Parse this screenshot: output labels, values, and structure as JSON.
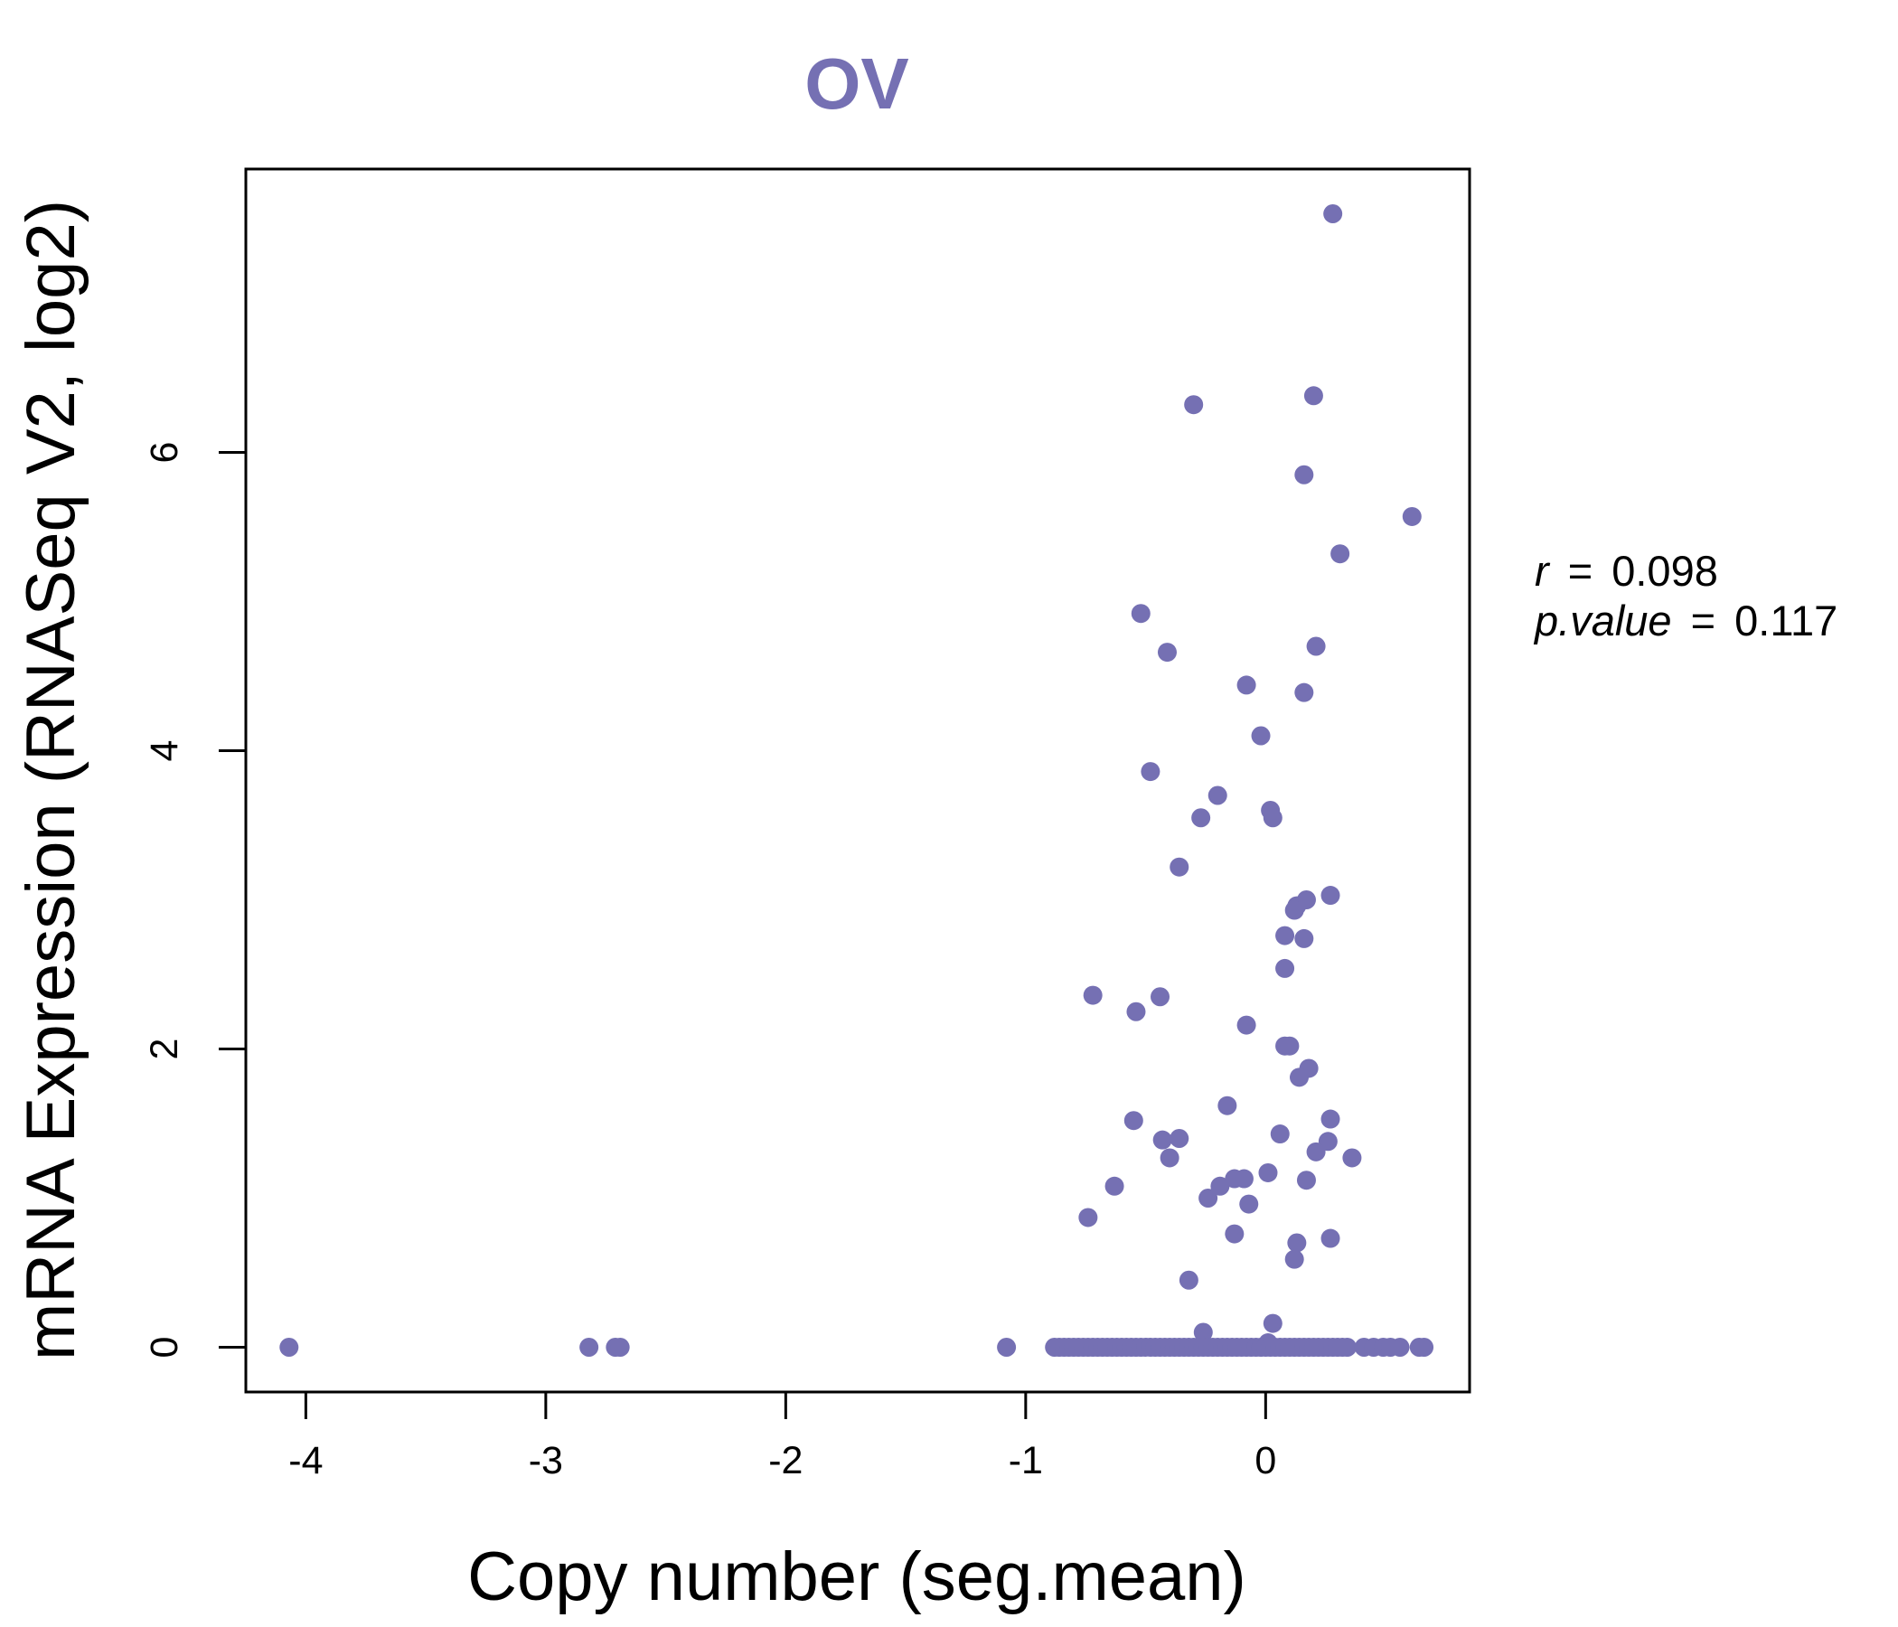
{
  "chart_data": {
    "type": "scatter",
    "title": "OV",
    "xlabel": "Copy number (seg.mean)",
    "ylabel": "mRNA Expression (RNASeq V2, log2)",
    "xlim": [
      -4.25,
      0.85
    ],
    "ylim": [
      -0.3,
      7.9
    ],
    "xticks": [
      -4,
      -3,
      -2,
      -1,
      0
    ],
    "yticks": [
      0,
      2,
      4,
      6
    ],
    "point_color": "#7570b3",
    "title_color": "#7570b3",
    "annotation": {
      "r_label": "r",
      "r_value": "0.098",
      "p_label": "p.value",
      "p_value": "0.117"
    },
    "points": [
      [
        0.28,
        7.6
      ],
      [
        -0.3,
        6.32
      ],
      [
        0.2,
        6.38
      ],
      [
        0.16,
        5.85
      ],
      [
        0.61,
        5.57
      ],
      [
        0.31,
        5.32
      ],
      [
        -0.52,
        4.92
      ],
      [
        -0.41,
        4.66
      ],
      [
        0.21,
        4.7
      ],
      [
        -0.08,
        4.44
      ],
      [
        0.16,
        4.39
      ],
      [
        -0.02,
        4.1
      ],
      [
        -0.48,
        3.86
      ],
      [
        -0.2,
        3.7
      ],
      [
        0.02,
        3.6
      ],
      [
        -0.27,
        3.55
      ],
      [
        0.03,
        3.55
      ],
      [
        -0.36,
        3.22
      ],
      [
        0.27,
        3.03
      ],
      [
        0.17,
        3.0
      ],
      [
        0.13,
        2.96
      ],
      [
        0.12,
        2.93
      ],
      [
        0.08,
        2.76
      ],
      [
        0.16,
        2.74
      ],
      [
        0.08,
        2.54
      ],
      [
        -0.72,
        2.36
      ],
      [
        -0.44,
        2.35
      ],
      [
        -0.54,
        2.25
      ],
      [
        -0.08,
        2.16
      ],
      [
        0.08,
        2.02
      ],
      [
        0.1,
        2.02
      ],
      [
        0.18,
        1.87
      ],
      [
        0.14,
        1.81
      ],
      [
        -0.16,
        1.62
      ],
      [
        -0.55,
        1.52
      ],
      [
        0.27,
        1.53
      ],
      [
        0.06,
        1.43
      ],
      [
        -0.43,
        1.39
      ],
      [
        -0.36,
        1.4
      ],
      [
        0.26,
        1.38
      ],
      [
        0.21,
        1.31
      ],
      [
        0.36,
        1.27
      ],
      [
        -0.4,
        1.27
      ],
      [
        0.01,
        1.17
      ],
      [
        -0.13,
        1.13
      ],
      [
        -0.09,
        1.13
      ],
      [
        0.17,
        1.12
      ],
      [
        -0.19,
        1.08
      ],
      [
        -0.63,
        1.08
      ],
      [
        -0.24,
        1.0
      ],
      [
        -0.07,
        0.96
      ],
      [
        -0.74,
        0.87
      ],
      [
        -0.13,
        0.76
      ],
      [
        0.27,
        0.73
      ],
      [
        0.13,
        0.7
      ],
      [
        0.12,
        0.59
      ],
      [
        -0.32,
        0.45
      ],
      [
        0.03,
        0.16
      ],
      [
        -0.26,
        0.1
      ],
      [
        0.01,
        0.03
      ],
      [
        -4.07,
        0.0
      ],
      [
        -2.82,
        0.0
      ],
      [
        -2.71,
        0.0
      ],
      [
        -2.69,
        0.0
      ],
      [
        -1.08,
        0.0
      ],
      [
        -0.88,
        0.0
      ],
      [
        -0.86,
        0.0
      ],
      [
        -0.84,
        0.0
      ],
      [
        -0.82,
        0.0
      ],
      [
        -0.8,
        0.0
      ],
      [
        -0.78,
        0.0
      ],
      [
        -0.76,
        0.0
      ],
      [
        -0.74,
        0.0
      ],
      [
        -0.72,
        0.0
      ],
      [
        -0.7,
        0.0
      ],
      [
        -0.68,
        0.0
      ],
      [
        -0.66,
        0.0
      ],
      [
        -0.64,
        0.0
      ],
      [
        -0.62,
        0.0
      ],
      [
        -0.6,
        0.0
      ],
      [
        -0.58,
        0.0
      ],
      [
        -0.56,
        0.0
      ],
      [
        -0.54,
        0.0
      ],
      [
        -0.52,
        0.0
      ],
      [
        -0.5,
        0.0
      ],
      [
        -0.48,
        0.0
      ],
      [
        -0.46,
        0.0
      ],
      [
        -0.44,
        0.0
      ],
      [
        -0.42,
        0.0
      ],
      [
        -0.4,
        0.0
      ],
      [
        -0.38,
        0.0
      ],
      [
        -0.36,
        0.0
      ],
      [
        -0.34,
        0.0
      ],
      [
        -0.32,
        0.0
      ],
      [
        -0.3,
        0.0
      ],
      [
        -0.28,
        0.0
      ],
      [
        -0.26,
        0.0
      ],
      [
        -0.24,
        0.0
      ],
      [
        -0.22,
        0.0
      ],
      [
        -0.2,
        0.0
      ],
      [
        -0.18,
        0.0
      ],
      [
        -0.16,
        0.0
      ],
      [
        -0.14,
        0.0
      ],
      [
        -0.12,
        0.0
      ],
      [
        -0.1,
        0.0
      ],
      [
        -0.08,
        0.0
      ],
      [
        -0.06,
        0.0
      ],
      [
        -0.04,
        0.0
      ],
      [
        -0.02,
        0.0
      ],
      [
        0.0,
        0.0
      ],
      [
        0.02,
        0.0
      ],
      [
        0.04,
        0.0
      ],
      [
        0.06,
        0.0
      ],
      [
        0.08,
        0.0
      ],
      [
        0.1,
        0.0
      ],
      [
        0.12,
        0.0
      ],
      [
        0.14,
        0.0
      ],
      [
        0.16,
        0.0
      ],
      [
        0.18,
        0.0
      ],
      [
        0.2,
        0.0
      ],
      [
        0.22,
        0.0
      ],
      [
        0.24,
        0.0
      ],
      [
        0.26,
        0.0
      ],
      [
        0.28,
        0.0
      ],
      [
        0.3,
        0.0
      ],
      [
        0.32,
        0.0
      ],
      [
        0.34,
        0.0
      ],
      [
        0.41,
        0.0
      ],
      [
        0.45,
        0.0
      ],
      [
        0.49,
        0.0
      ],
      [
        0.52,
        0.0
      ],
      [
        0.56,
        0.0
      ],
      [
        0.64,
        0.0
      ],
      [
        0.66,
        0.0
      ]
    ]
  }
}
